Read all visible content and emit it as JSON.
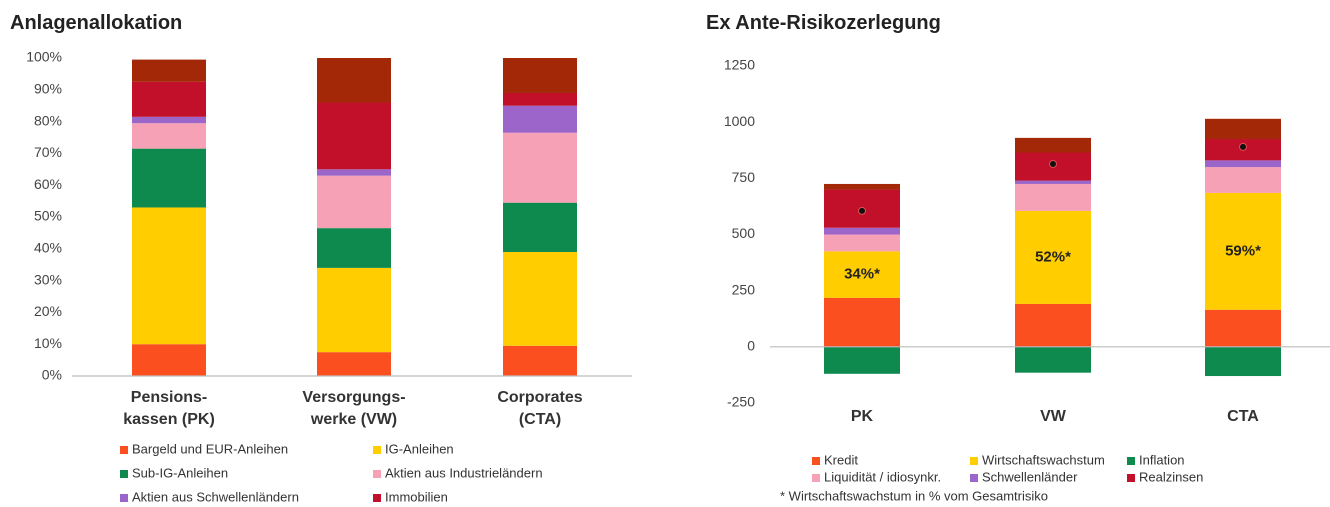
{
  "chart_data": [
    {
      "type": "stacked_bar",
      "title": "Anlagenallokation",
      "categories": [
        [
          "Pensions-",
          "kassen (PK)"
        ],
        [
          "Versorgungs-",
          "werke (VW)"
        ],
        [
          "Corporates",
          "(CTA)"
        ]
      ],
      "ylim": [
        0,
        100
      ],
      "yticks": [
        {
          "value": 0,
          "label": "0%"
        },
        {
          "value": 10,
          "label": "10%"
        },
        {
          "value": 20,
          "label": "20%"
        },
        {
          "value": 30,
          "label": "30%"
        },
        {
          "value": 40,
          "label": "40%"
        },
        {
          "value": 50,
          "label": "50%"
        },
        {
          "value": 60,
          "label": "60%"
        },
        {
          "value": 70,
          "label": "70%"
        },
        {
          "value": 80,
          "label": "80%"
        },
        {
          "value": 90,
          "label": "90%"
        },
        {
          "value": 100,
          "label": "100%"
        }
      ],
      "series": [
        {
          "name": "Bargeld und EUR-Anleihen",
          "color": "#fc4f1f",
          "values": [
            10,
            7.5,
            9.5
          ]
        },
        {
          "name": "IG-Anleihen",
          "color": "#ffcd00",
          "values": [
            43,
            26.5,
            29.5
          ]
        },
        {
          "name": "Sub-IG-Anleihen",
          "color": "#0e8a4f",
          "values": [
            18.5,
            12.5,
            15.5
          ]
        },
        {
          "name": "Aktien aus Industrieländern",
          "color": "#f7a1b6",
          "values": [
            8,
            16.5,
            22
          ]
        },
        {
          "name": "Aktien aus Schwellenländern",
          "color": "#9b65c9",
          "values": [
            2,
            2,
            8.5
          ]
        },
        {
          "name": "Immobilien",
          "color": "#c2102b",
          "values": [
            11,
            21,
            4
          ]
        },
        {
          "color": "#a32808",
          "values": [
            7,
            14,
            11
          ]
        }
      ]
    },
    {
      "type": "stacked_bar",
      "title": "Ex Ante-Risikozerlegung",
      "categories": [
        [
          "PK"
        ],
        [
          "VW"
        ],
        [
          "CTA"
        ]
      ],
      "ylim": [
        -250,
        1250
      ],
      "yticks": [
        -250,
        0,
        250,
        500,
        750,
        1000,
        1250
      ],
      "series": [
        {
          "name": "Kredit",
          "color": "#fc4f1f",
          "values": [
            218,
            191,
            165
          ]
        },
        {
          "name": "Wirtschaftswachstum",
          "color": "#ffcd00",
          "values": [
            207,
            414,
            520
          ],
          "value_labels": [
            "34%*",
            "52%*",
            "59%*"
          ]
        },
        {
          "name": "Inflation",
          "color": "#0e8a4f",
          "values": [
            -120,
            -115,
            -130
          ]
        },
        {
          "name": "Liquidität / idiosynkr.",
          "color": "#f7a1b6",
          "values": [
            75,
            120,
            115
          ]
        },
        {
          "name": "Schwellenländer",
          "color": "#9b65c9",
          "values": [
            30,
            15,
            30
          ]
        },
        {
          "name": "Realzinsen",
          "color": "#c2102b",
          "values": [
            170,
            125,
            95
          ]
        },
        {
          "color": "#a32808",
          "values": [
            25,
            65,
            90
          ]
        }
      ],
      "markers": {
        "color": "#111111",
        "values": [
          605,
          814,
          890
        ]
      },
      "footnote": "* Wirtschaftswachstum in % vom Gesamtrisiko"
    }
  ]
}
